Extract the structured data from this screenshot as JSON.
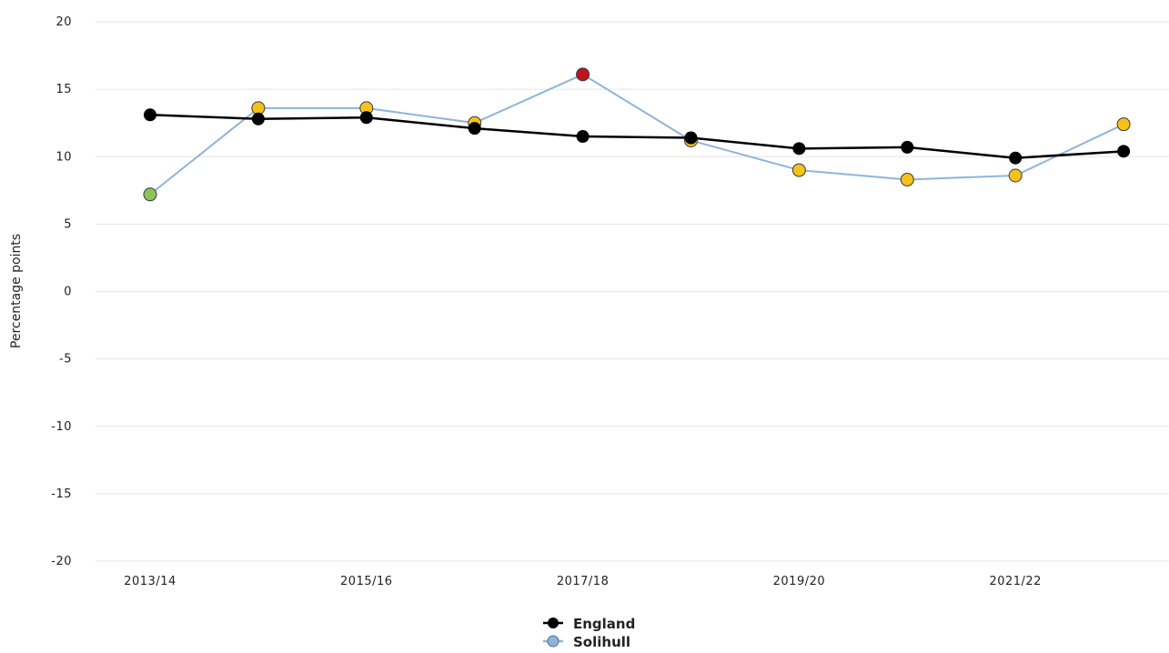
{
  "chart_data": {
    "type": "line",
    "title": "",
    "xlabel": "",
    "ylabel": "Percentage points",
    "ylim": [
      -20,
      20
    ],
    "yticks": [
      20,
      15,
      10,
      5,
      0,
      -5,
      -10,
      -15,
      -20
    ],
    "ytick_labels": [
      "20",
      "15",
      "10",
      "5",
      "0",
      "-5",
      "-10",
      "-15",
      "-20"
    ],
    "x": [
      "2013/14",
      "2014/15",
      "2015/16",
      "2016/17",
      "2017/18",
      "2018/19",
      "2019/20",
      "2020/21",
      "2021/22",
      "2022/23"
    ],
    "xtick_labels": [
      "2013/14",
      "",
      "2015/16",
      "",
      "2017/18",
      "",
      "2019/20",
      "",
      "2021/22",
      ""
    ],
    "grid": true,
    "legend_position": "bottom-center",
    "series": [
      {
        "name": "England",
        "line_color": "#000000",
        "values": [
          13.1,
          12.8,
          12.9,
          12.1,
          11.5,
          11.4,
          10.6,
          10.7,
          9.9,
          10.4
        ],
        "point_colors": [
          "#000000",
          "#000000",
          "#000000",
          "#000000",
          "#000000",
          "#000000",
          "#000000",
          "#000000",
          "#000000",
          "#000000"
        ]
      },
      {
        "name": "Solihull",
        "line_color": "#8fb4d9",
        "values": [
          7.2,
          13.6,
          13.6,
          12.5,
          16.1,
          11.2,
          9.0,
          8.3,
          8.6,
          12.4
        ],
        "point_colors": [
          "#8cc45a",
          "#f5c21b",
          "#f5c21b",
          "#f5c21b",
          "#c0141c",
          "#f5c21b",
          "#f5c21b",
          "#f5c21b",
          "#f5c21b",
          "#f5c21b"
        ]
      }
    ]
  }
}
